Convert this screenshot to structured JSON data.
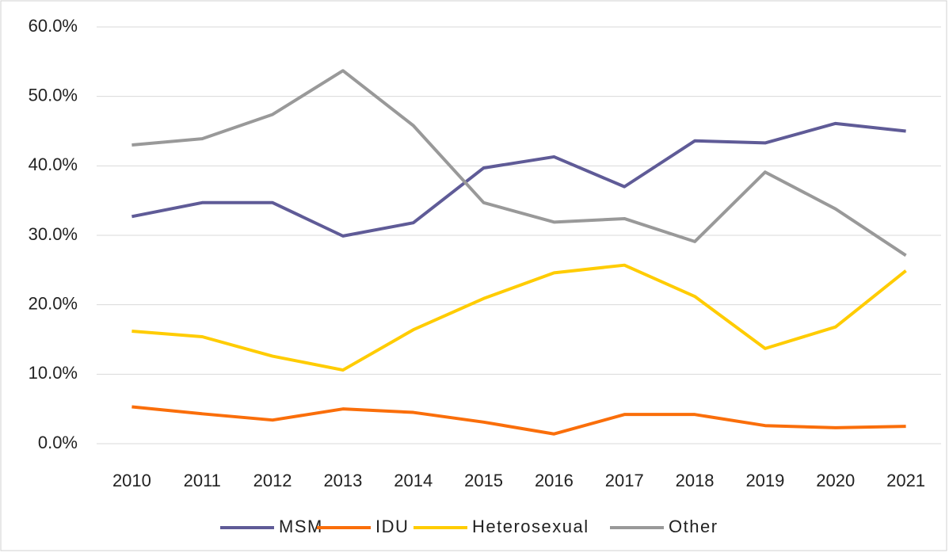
{
  "chart_data": {
    "type": "line",
    "categories": [
      "2010",
      "2011",
      "2012",
      "2013",
      "2014",
      "2015",
      "2016",
      "2017",
      "2018",
      "2019",
      "2020",
      "2021"
    ],
    "series": [
      {
        "name": "MSM",
        "color": "#5f5b97",
        "values": [
          32.7,
          34.7,
          34.7,
          29.9,
          31.8,
          39.7,
          41.3,
          37.0,
          43.6,
          43.3,
          46.1,
          45.0
        ]
      },
      {
        "name": "IDU",
        "color": "#fa6e0a",
        "values": [
          5.3,
          4.3,
          3.4,
          5.0,
          4.5,
          3.1,
          1.4,
          4.2,
          4.2,
          2.6,
          2.3,
          2.5
        ]
      },
      {
        "name": "Heterosexual",
        "color": "#ffcc00",
        "values": [
          16.2,
          15.4,
          12.6,
          10.6,
          16.4,
          20.9,
          24.6,
          25.7,
          21.2,
          13.7,
          16.8,
          24.9
        ]
      },
      {
        "name": "Other",
        "color": "#999999",
        "values": [
          43.0,
          43.9,
          47.4,
          53.7,
          45.8,
          34.7,
          31.9,
          32.4,
          29.1,
          39.1,
          33.8,
          27.1
        ]
      }
    ],
    "ylim": [
      0,
      60
    ],
    "yticks": [
      {
        "value": 0,
        "label": "0.0%"
      },
      {
        "value": 10,
        "label": "10.0%"
      },
      {
        "value": 20,
        "label": "20.0%"
      },
      {
        "value": 30,
        "label": "30.0%"
      },
      {
        "value": 40,
        "label": "40.0%"
      },
      {
        "value": 50,
        "label": "50.0%"
      },
      {
        "value": 60,
        "label": "60.0%"
      }
    ],
    "grid": true,
    "legend": "bottom"
  }
}
